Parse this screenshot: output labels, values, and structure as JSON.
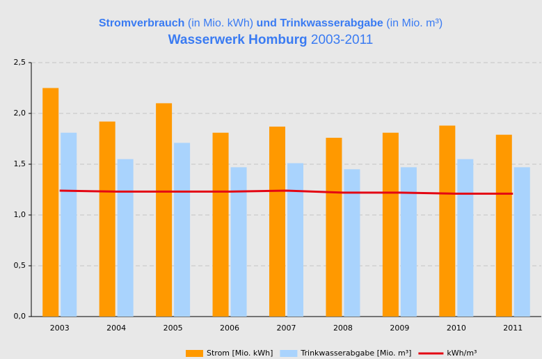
{
  "chart_data": {
    "type": "bar",
    "title_lines": [
      [
        {
          "text": "Stromverbrauch",
          "bold": true
        },
        {
          "text": " (in Mio. kWh) ",
          "bold": false
        },
        {
          "text": "und Trinkwasserabgabe",
          "bold": true
        },
        {
          "text": " (in Mio. m³)",
          "bold": false
        }
      ],
      [
        {
          "text": "Wasserwerk Homburg",
          "bold": true
        },
        {
          "text": " 2003-2011",
          "bold": false
        }
      ]
    ],
    "categories": [
      "2003",
      "2004",
      "2005",
      "2006",
      "2007",
      "2008",
      "2009",
      "2010",
      "2011"
    ],
    "series": [
      {
        "name": "Strom [Mio. kWh]",
        "type": "bar",
        "color": "#ff9900",
        "values": [
          2.25,
          1.92,
          2.1,
          1.81,
          1.87,
          1.76,
          1.81,
          1.88,
          1.79
        ]
      },
      {
        "name": "Trinkwasserabgabe [Mio. m³]",
        "type": "bar",
        "color": "#a9d3fd",
        "values": [
          1.81,
          1.55,
          1.71,
          1.47,
          1.51,
          1.45,
          1.47,
          1.55,
          1.47
        ]
      },
      {
        "name": "kWh/m³",
        "type": "line",
        "color": "#e30613",
        "values": [
          1.24,
          1.23,
          1.23,
          1.23,
          1.24,
          1.22,
          1.22,
          1.21,
          1.21
        ]
      }
    ],
    "ylim": [
      0,
      2.5
    ],
    "yticks": [
      {
        "value": 0,
        "label": "0,0"
      },
      {
        "value": 0.5,
        "label": "0,5"
      },
      {
        "value": 1,
        "label": "1,0"
      },
      {
        "value": 1.5,
        "label": "1,5"
      },
      {
        "value": 2,
        "label": "2,0"
      },
      {
        "value": 2.5,
        "label": "2,5"
      }
    ],
    "grid": true,
    "legend": "bottom"
  }
}
